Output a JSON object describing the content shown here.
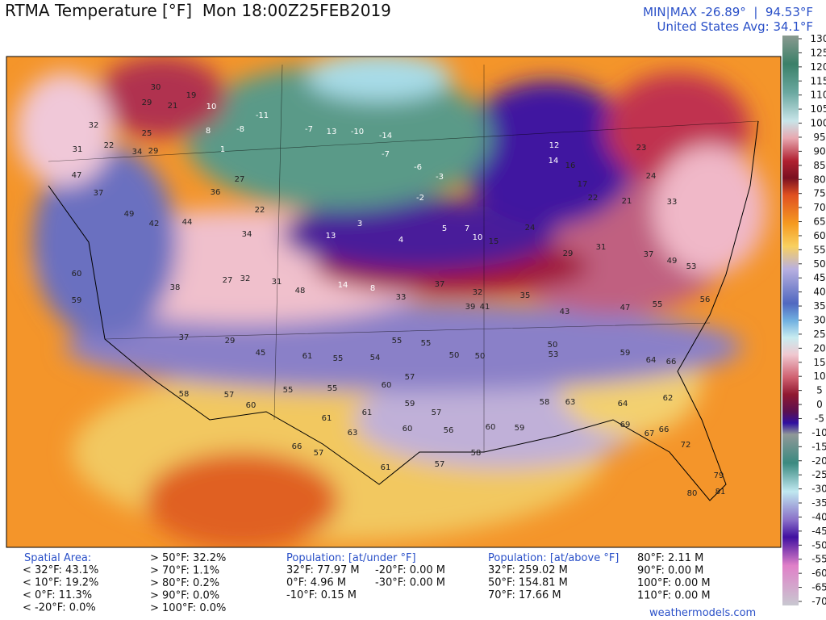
{
  "header": {
    "title": "RTMA Temperature [°F]  Mon 18:00Z25FEB2019",
    "minmax": "MIN|MAX -26.89°  |  94.53°F",
    "average": "United States Avg: 34.1°F"
  },
  "colorbar": {
    "ticks": [
      130,
      125,
      120,
      115,
      110,
      105,
      100,
      95,
      90,
      85,
      80,
      75,
      70,
      65,
      60,
      55,
      50,
      45,
      40,
      35,
      30,
      25,
      20,
      15,
      10,
      5,
      0,
      -5,
      -10,
      -15,
      -20,
      -25,
      -30,
      -35,
      -40,
      -45,
      -50,
      -55,
      -60,
      -65,
      -70
    ]
  },
  "map_labels": [
    30,
    29,
    21,
    19,
    10,
    32,
    25,
    22,
    31,
    34,
    29,
    8,
    1,
    -11,
    -8,
    -7,
    13,
    -10,
    -14,
    -7,
    -6,
    -3,
    -2,
    12,
    14,
    16,
    17,
    22,
    21,
    23,
    24,
    33,
    47,
    37,
    49,
    42,
    44,
    36,
    27,
    22,
    34,
    13,
    3,
    4,
    5,
    7,
    10,
    15,
    24,
    29,
    31,
    37,
    49,
    53,
    60,
    59,
    38,
    27,
    32,
    31,
    48,
    14,
    8,
    33,
    37,
    32,
    39,
    41,
    35,
    43,
    47,
    55,
    56,
    37,
    29,
    45,
    61,
    55,
    54,
    55,
    55,
    50,
    50,
    50,
    53,
    59,
    64,
    66,
    58,
    57,
    60,
    55,
    55,
    57,
    60,
    59,
    57,
    61,
    61,
    63,
    60,
    56,
    60,
    59,
    58,
    63,
    64,
    62,
    69,
    67,
    66,
    72,
    66,
    57,
    61,
    57,
    58,
    79,
    81,
    80
  ],
  "footer": {
    "spatial": {
      "title": "Spatial Area:",
      "below": [
        "< 32°F: 43.1%",
        "< 10°F: 19.2%",
        "< 0°F: 11.3%",
        "< -20°F: 0.0%"
      ],
      "above": [
        "> 50°F: 32.2%",
        "> 70°F: 1.1%",
        "> 80°F: 0.2%",
        "> 90°F: 0.0%",
        "> 100°F: 0.0%"
      ]
    },
    "pop_under": {
      "title": "Population: [at/under °F]",
      "col1": [
        "32°F: 77.97 M",
        "0°F: 4.96 M",
        "-10°F: 0.15 M"
      ],
      "col2": [
        "-20°F: 0.00 M",
        "-30°F: 0.00 M"
      ]
    },
    "pop_above": {
      "title": "Population: [at/above °F]",
      "col1": [
        "32°F: 259.02 M",
        "50°F: 154.81 M",
        "70°F: 17.66 M"
      ],
      "col2": [
        "80°F: 2.11 M",
        "90°F: 0.00 M",
        "100°F: 0.00 M",
        "110°F: 0.00 M"
      ]
    },
    "credit": "weathermodels.com"
  }
}
